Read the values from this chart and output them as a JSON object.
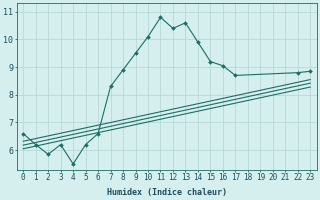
{
  "xlabel": "Humidex (Indice chaleur)",
  "bg_color": "#d5eeee",
  "line_color": "#1e6e65",
  "grid_color": "#b8d8d8",
  "axis_color": "#1e6e65",
  "text_color": "#1e4e5e",
  "zigzag_x": [
    0,
    1,
    2,
    3,
    4,
    5,
    6,
    7,
    8,
    9,
    10,
    11,
    12,
    13,
    14,
    15,
    16,
    17,
    22,
    23
  ],
  "zigzag_y": [
    6.6,
    6.2,
    5.85,
    6.2,
    5.5,
    6.2,
    6.6,
    8.3,
    8.9,
    9.5,
    10.1,
    10.8,
    10.4,
    10.6,
    9.9,
    9.2,
    9.05,
    8.7,
    8.8,
    8.85
  ],
  "line1_x": [
    0,
    23
  ],
  "line1_y": [
    6.32,
    8.55
  ],
  "line2_x": [
    0,
    23
  ],
  "line2_y": [
    6.18,
    8.42
  ],
  "line3_x": [
    0,
    23
  ],
  "line3_y": [
    6.05,
    8.28
  ],
  "xlim": [
    -0.5,
    23.5
  ],
  "ylim": [
    5.3,
    11.3
  ],
  "yticks": [
    6,
    7,
    8,
    9,
    10,
    11
  ],
  "xticks": [
    0,
    1,
    2,
    3,
    4,
    5,
    6,
    7,
    8,
    9,
    10,
    11,
    12,
    13,
    14,
    15,
    16,
    17,
    18,
    19,
    20,
    21,
    22,
    23
  ],
  "tick_fontsize": 5.5,
  "xlabel_fontsize": 6.0
}
